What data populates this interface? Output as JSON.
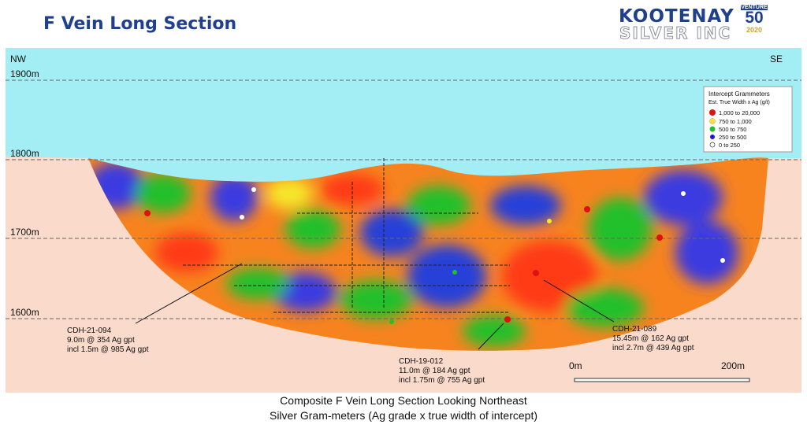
{
  "header": {
    "title": "F Vein Long Section",
    "logo_line1": "KOOTENAY",
    "logo_line2": "SILVER INC",
    "badge_top": "VENTURE",
    "badge_number": "50",
    "badge_year": "2020"
  },
  "figure": {
    "left_direction": "NW",
    "right_direction": "SE",
    "elevations": [
      "1900m",
      "1800m",
      "1700m",
      "1600m"
    ],
    "legend": {
      "title": "Intercept Grammeters",
      "subtitle": "Est. True Width x Ag (g/t)",
      "rows": [
        "1,000  to  20,000",
        "750  to   1,000",
        "500  to     750",
        "250  to     500",
        "0  to     250"
      ]
    },
    "callouts": [
      {
        "lines": [
          "CDH-21-094",
          "9.0m @ 354 Ag gpt",
          "incl 1.5m @ 985 Ag gpt"
        ]
      },
      {
        "lines": [
          "CDH-19-012",
          "11.0m @ 184 Ag gpt",
          "incl 1.75m @ 755 Ag gpt"
        ]
      },
      {
        "lines": [
          "CDH-21-089",
          "15.45m @ 162 Ag gpt",
          "incl 2.7m @ 439 Ag gpt"
        ]
      }
    ],
    "scale": {
      "start": "0m",
      "end": "200m"
    }
  },
  "caption": [
    "Composite F Vein Long Section Looking Northeast",
    "Silver Gram-meters (Ag grade x true width of intercept)"
  ]
}
